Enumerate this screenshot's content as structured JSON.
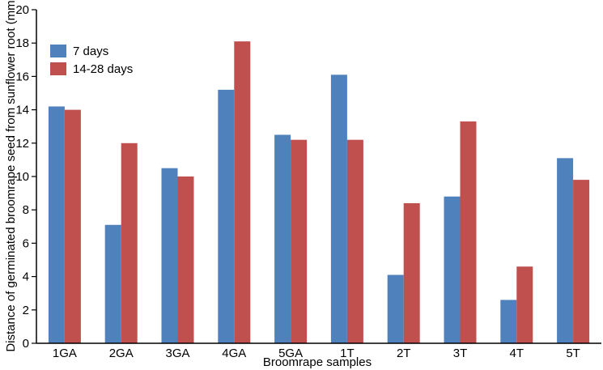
{
  "chart_data": {
    "type": "bar",
    "xlabel": "Broomrape samples",
    "ylabel": "Distance of germinated broomrape seed from sunflower root (mm)",
    "ylim": [
      0,
      20
    ],
    "yticks": [
      "0",
      "2",
      "4",
      "6",
      "8",
      "10",
      "12",
      "14",
      "16",
      "18",
      "20"
    ],
    "categories": [
      "1GA",
      "2GA",
      "3GA",
      "4GA",
      "5GA",
      "1T",
      "2T",
      "3T",
      "4T",
      "5T"
    ],
    "series": [
      {
        "name": "7 days",
        "color": "#4f81bd",
        "values": [
          14.2,
          7.1,
          10.5,
          15.2,
          12.5,
          16.1,
          4.1,
          8.8,
          2.6,
          11.1
        ]
      },
      {
        "name": "14-28 days",
        "color": "#c0504d",
        "values": [
          14.0,
          12.0,
          10.0,
          18.1,
          12.2,
          12.2,
          8.4,
          13.3,
          4.6,
          9.8
        ]
      }
    ],
    "grid": false,
    "legend_position": "top-left"
  }
}
